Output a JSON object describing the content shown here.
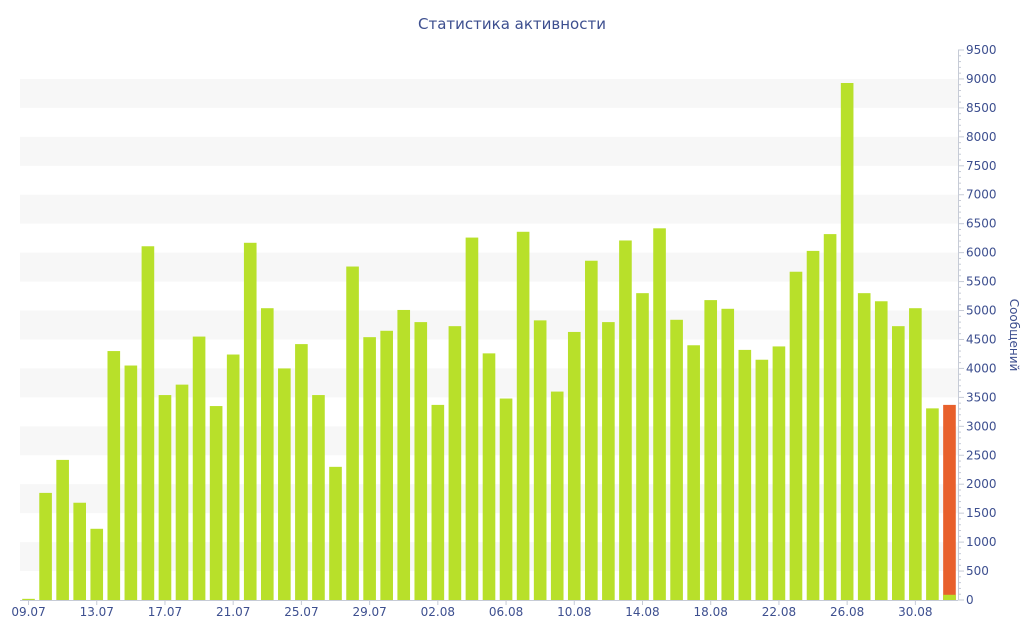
{
  "chart_data": {
    "type": "bar",
    "title": "Статистика активности",
    "xlabel": "",
    "ylabel": "Сообщений",
    "ylim": [
      0,
      9500
    ],
    "y_ticks": [
      0,
      500,
      1000,
      1500,
      2000,
      2500,
      3000,
      3500,
      4000,
      4500,
      5000,
      5500,
      6000,
      6500,
      7000,
      7500,
      8000,
      8500,
      9000,
      9500
    ],
    "y_axis_side": "right",
    "grid": "alternating horizontal bands",
    "x_tick_labels": [
      "09.07",
      "13.07",
      "17.07",
      "21.07",
      "25.07",
      "29.07",
      "02.08",
      "06.08",
      "10.08",
      "14.08",
      "18.08",
      "22.08",
      "26.08",
      "30.08"
    ],
    "categories": [
      "09.07",
      "10.07",
      "11.07",
      "12.07",
      "13.07",
      "14.07",
      "15.07",
      "16.07",
      "17.07",
      "18.07",
      "19.07",
      "20.07",
      "21.07",
      "22.07",
      "23.07",
      "24.07",
      "25.07",
      "26.07",
      "27.07",
      "28.07",
      "29.07",
      "30.07",
      "31.07",
      "01.08",
      "02.08",
      "03.08",
      "04.08",
      "05.08",
      "06.08",
      "07.08",
      "08.08",
      "09.08",
      "10.08",
      "11.08",
      "12.08",
      "13.08",
      "14.08",
      "15.08",
      "16.08",
      "17.08",
      "18.08",
      "19.08",
      "20.08",
      "21.08",
      "22.08",
      "23.08",
      "24.08",
      "25.08",
      "26.08",
      "27.08",
      "28.08",
      "29.08",
      "30.08",
      "31.08",
      "01.09"
    ],
    "values": [
      20,
      1850,
      2420,
      1680,
      1230,
      4300,
      4050,
      6110,
      3540,
      3720,
      4550,
      3350,
      4240,
      6170,
      5040,
      4000,
      4420,
      3540,
      2300,
      5760,
      4540,
      4650,
      5010,
      4800,
      3370,
      4730,
      6260,
      4260,
      3480,
      6360,
      4830,
      3600,
      4630,
      5860,
      4800,
      6210,
      5300,
      6420,
      4840,
      4400,
      5180,
      5030,
      4320,
      4150,
      4380,
      5670,
      6030,
      6320,
      8930,
      5300,
      5160,
      4730,
      5040,
      3310,
      3370
    ],
    "highlight": {
      "category": "01.09",
      "value": 3370,
      "color": "#e8602c",
      "base_value": 90,
      "base_color": "#b8e02a"
    },
    "colors": {
      "bar": "#b8e02a",
      "highlight": "#e8602c",
      "text": "#3d4f8f",
      "band": "#f7f7f7"
    }
  }
}
